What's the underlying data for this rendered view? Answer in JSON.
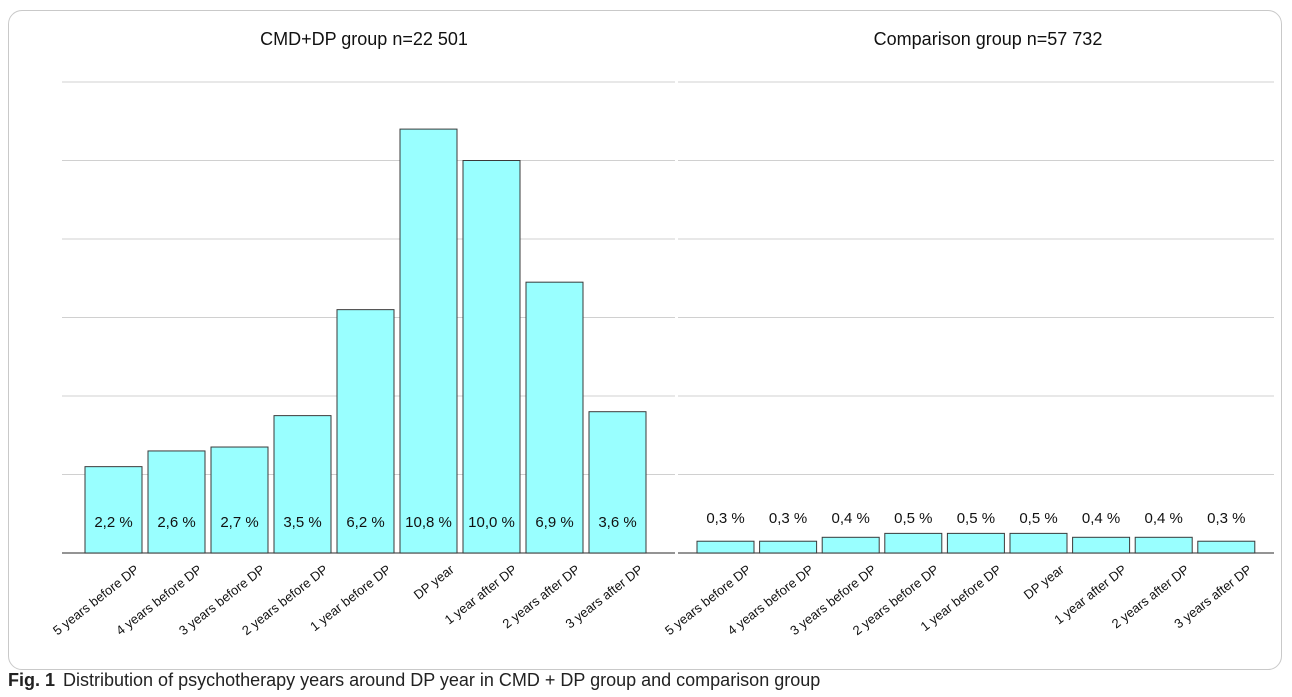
{
  "figure": {
    "caption_label": "Fig. 1",
    "caption_text": "Distribution of psychotherapy years around DP year in CMD + DP group and comparison group"
  },
  "colors": {
    "bar_fill": "#99ffff",
    "bar_stroke": "#3a3a3a",
    "grid": "#d0d0d0",
    "axis": "#555555"
  },
  "chart_data": [
    {
      "type": "bar",
      "title": "CMD+DP group n=22 501",
      "categories": [
        "5 years before DP",
        "4 years before DP",
        "3 years before DP",
        "2 years before DP",
        "1 year before DP",
        "DP year",
        "1 year after DP",
        "2 years after DP",
        "3 years after DP"
      ],
      "values": [
        2.2,
        2.6,
        2.7,
        3.5,
        6.2,
        10.8,
        10.0,
        6.9,
        3.6
      ],
      "data_labels": [
        "2,2 %",
        "2,6 %",
        "2,7 %",
        "3,5 %",
        "6,2 %",
        "10,8 %",
        "10,0 %",
        "6,9 %",
        "3,6 %"
      ],
      "label_position": "inside",
      "ylim": [
        0,
        12
      ],
      "grid": true,
      "xlabel": "",
      "ylabel": ""
    },
    {
      "type": "bar",
      "title": "Comparison group n=57 732",
      "categories": [
        "5 years before DP",
        "4 years before DP",
        "3 years before DP",
        "2 years before DP",
        "1 year before DP",
        "DP year",
        "1 year after DP",
        "2 years after DP",
        "3 years after DP"
      ],
      "values": [
        0.3,
        0.3,
        0.4,
        0.5,
        0.5,
        0.5,
        0.4,
        0.4,
        0.3
      ],
      "data_labels": [
        "0,3 %",
        "0,3 %",
        "0,4 %",
        "0,5 %",
        "0,5 %",
        "0,5 %",
        "0,4 %",
        "0,4 %",
        "0,3 %"
      ],
      "label_position": "above",
      "ylim": [
        0,
        12
      ],
      "grid": true,
      "xlabel": "",
      "ylabel": ""
    }
  ]
}
